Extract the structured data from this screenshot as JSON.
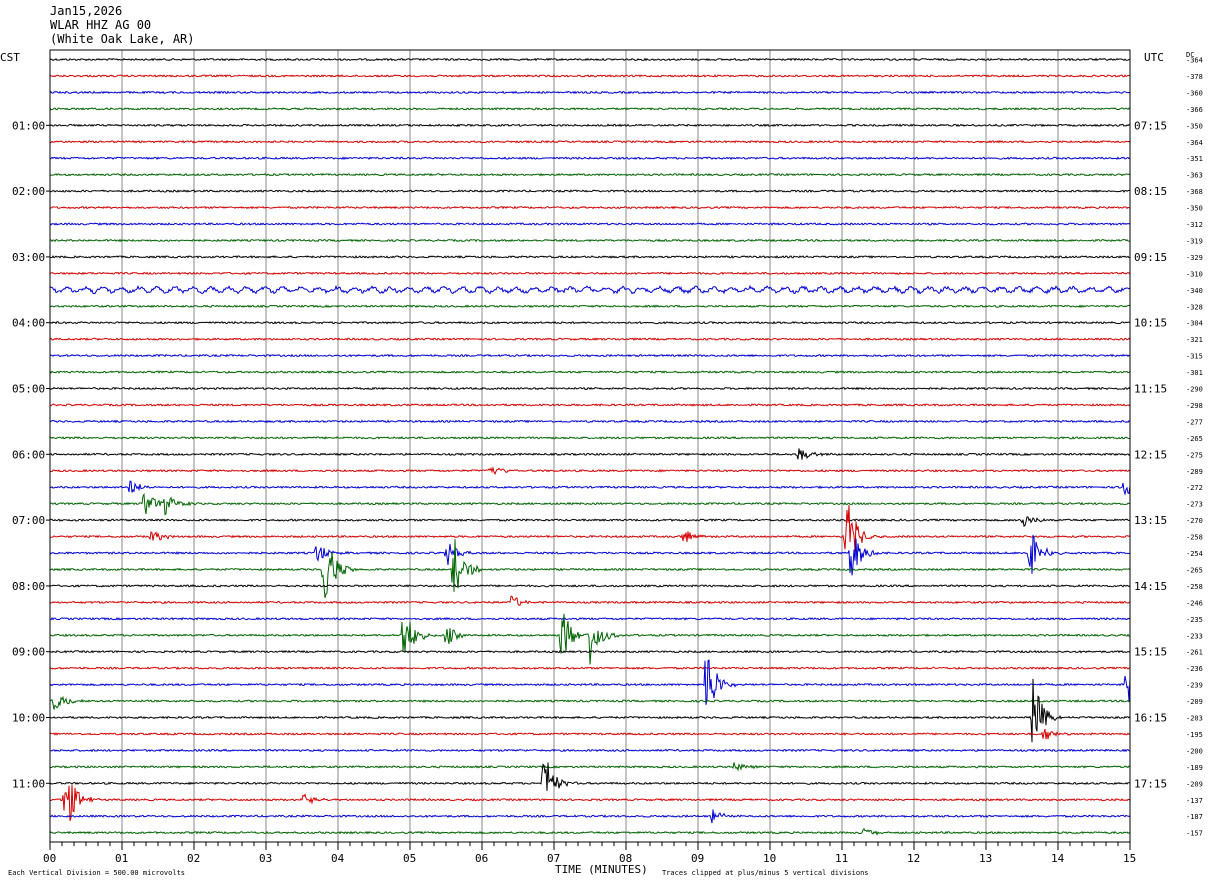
{
  "header": {
    "date": "Jan15,2026",
    "station": "WLAR HHZ AG 00",
    "location": "(White Oak Lake, AR)"
  },
  "labels": {
    "left_timezone": "CST",
    "right_timezone": "UTC",
    "dc_label": "DC",
    "x_axis_title": "TIME (MINUTES)",
    "scale_note": "Each Vertical Division =  500.00 microvolts",
    "clip_note": "Traces clipped at plus/minus 5 vertical divisions"
  },
  "colors": {
    "trace_cycle": [
      "#000000",
      "#d40000",
      "#0000d4",
      "#006400"
    ],
    "grid": "#888888"
  },
  "chart_data": {
    "type": "line",
    "title": "",
    "xlabel": "TIME (MINUTES)",
    "ylabel": "",
    "x_range": [
      0,
      15
    ],
    "x_ticks": [
      "00",
      "01",
      "02",
      "03",
      "04",
      "05",
      "06",
      "07",
      "08",
      "09",
      "10",
      "11",
      "12",
      "13",
      "14",
      "15"
    ],
    "trace_count": 48,
    "traces_per_hour": 4,
    "left_hour_labels": [
      "01:00",
      "02:00",
      "03:00",
      "04:00",
      "05:00",
      "06:00",
      "07:00",
      "08:00",
      "09:00",
      "10:00",
      "11:00"
    ],
    "right_hour_labels": [
      "07:15",
      "08:15",
      "09:15",
      "10:15",
      "11:15",
      "12:15",
      "13:15",
      "14:15",
      "15:15",
      "16:15",
      "17:15"
    ],
    "dc_offsets": [
      -364,
      -378,
      -360,
      -366,
      -350,
      -364,
      -351,
      -363,
      -368,
      -350,
      -312,
      -319,
      -329,
      -310,
      -340,
      -328,
      -304,
      -321,
      -315,
      -301,
      -290,
      -298,
      -277,
      -265,
      -275,
      -289,
      -272,
      -273,
      -270,
      -258,
      -254,
      -265,
      -258,
      -246,
      -235,
      -233,
      -261,
      -236,
      -239,
      -209,
      -203,
      -195,
      -200,
      -189,
      -209,
      -137,
      -187,
      -157
    ],
    "events": [
      {
        "trace": 26,
        "minute": 1.1,
        "amp": 3
      },
      {
        "trace": 27,
        "minute": 1.3,
        "amp": 6
      },
      {
        "trace": 27,
        "minute": 1.6,
        "amp": 4
      },
      {
        "trace": 29,
        "minute": 1.4,
        "amp": 3
      },
      {
        "trace": 30,
        "minute": 3.7,
        "amp": 4
      },
      {
        "trace": 31,
        "minute": 3.8,
        "amp": 16
      },
      {
        "trace": 31,
        "minute": 5.6,
        "amp": 13
      },
      {
        "trace": 30,
        "minute": 5.5,
        "amp": 5
      },
      {
        "trace": 33,
        "minute": 6.4,
        "amp": 3
      },
      {
        "trace": 35,
        "minute": 4.9,
        "amp": 12
      },
      {
        "trace": 35,
        "minute": 7.1,
        "amp": 11
      },
      {
        "trace": 35,
        "minute": 7.5,
        "amp": 10
      },
      {
        "trace": 35,
        "minute": 5.5,
        "amp": 4
      },
      {
        "trace": 29,
        "minute": 11.05,
        "amp": 16
      },
      {
        "trace": 30,
        "minute": 11.1,
        "amp": 12
      },
      {
        "trace": 30,
        "minute": 13.6,
        "amp": 10
      },
      {
        "trace": 28,
        "minute": 13.5,
        "amp": 3
      },
      {
        "trace": 38,
        "minute": 9.1,
        "amp": 16
      },
      {
        "trace": 40,
        "minute": 13.65,
        "amp": 14
      },
      {
        "trace": 38,
        "minute": 14.95,
        "amp": 9
      },
      {
        "trace": 39,
        "minute": 0.05,
        "amp": 5
      },
      {
        "trace": 44,
        "minute": 6.85,
        "amp": 12
      },
      {
        "trace": 45,
        "minute": 0.2,
        "amp": 14
      },
      {
        "trace": 45,
        "minute": 3.5,
        "amp": 3
      },
      {
        "trace": 46,
        "minute": 9.2,
        "amp": 3
      },
      {
        "trace": 25,
        "minute": 6.1,
        "amp": 3
      },
      {
        "trace": 24,
        "minute": 10.4,
        "amp": 3
      },
      {
        "trace": 26,
        "minute": 14.9,
        "amp": 4
      },
      {
        "trace": 29,
        "minute": 8.8,
        "amp": 3
      },
      {
        "trace": 41,
        "minute": 13.8,
        "amp": 3
      },
      {
        "trace": 43,
        "minute": 9.5,
        "amp": 2
      },
      {
        "trace": 47,
        "minute": 11.3,
        "amp": 2
      }
    ]
  }
}
